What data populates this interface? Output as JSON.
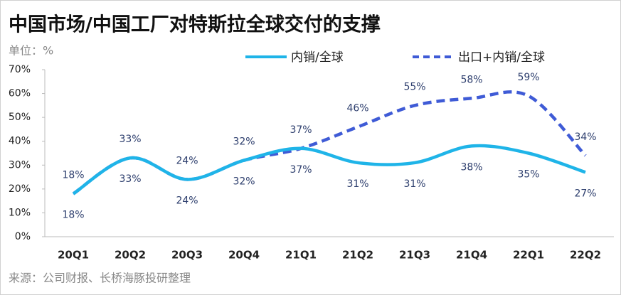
{
  "chart_data": {
    "type": "line",
    "title": "中国市场/中国工厂对特斯拉全球交付的支撑",
    "unit_label": "单位：%",
    "source": "来源：公司财报、长桥海豚投研整理",
    "categories": [
      "20Q1",
      "20Q2",
      "20Q3",
      "20Q4",
      "21Q1",
      "21Q2",
      "21Q3",
      "21Q4",
      "22Q1",
      "22Q2"
    ],
    "series": [
      {
        "name": "内销/全球",
        "color": "#1fb4e8",
        "dashed": false,
        "label_position": "below",
        "values": [
          18,
          33,
          24,
          32,
          37,
          31,
          31,
          38,
          35,
          27
        ],
        "value_labels": [
          "18%",
          "33%",
          "24%",
          "32%",
          "37%",
          "31%",
          "31%",
          "38%",
          "35%",
          "27%"
        ]
      },
      {
        "name": "出口+内销/全球",
        "color": "#3f5bd6",
        "dashed": true,
        "label_position": "above",
        "values": [
          18,
          33,
          24,
          32,
          37,
          46,
          55,
          58,
          59,
          34
        ],
        "value_labels": [
          "18%",
          "33%",
          "24%",
          "32%",
          "37%",
          "46%",
          "55%",
          "58%",
          "59%",
          "34%"
        ]
      }
    ],
    "ylim": [
      0,
      70
    ],
    "yticks": [
      {
        "value": 0,
        "label": "0%"
      },
      {
        "value": 10,
        "label": "10%"
      },
      {
        "value": 20,
        "label": "20%"
      },
      {
        "value": 30,
        "label": "30%"
      },
      {
        "value": 40,
        "label": "40%"
      },
      {
        "value": 50,
        "label": "50%"
      },
      {
        "value": 60,
        "label": "60%"
      },
      {
        "value": 70,
        "label": "70%"
      }
    ],
    "grid": false,
    "smooth": true
  }
}
